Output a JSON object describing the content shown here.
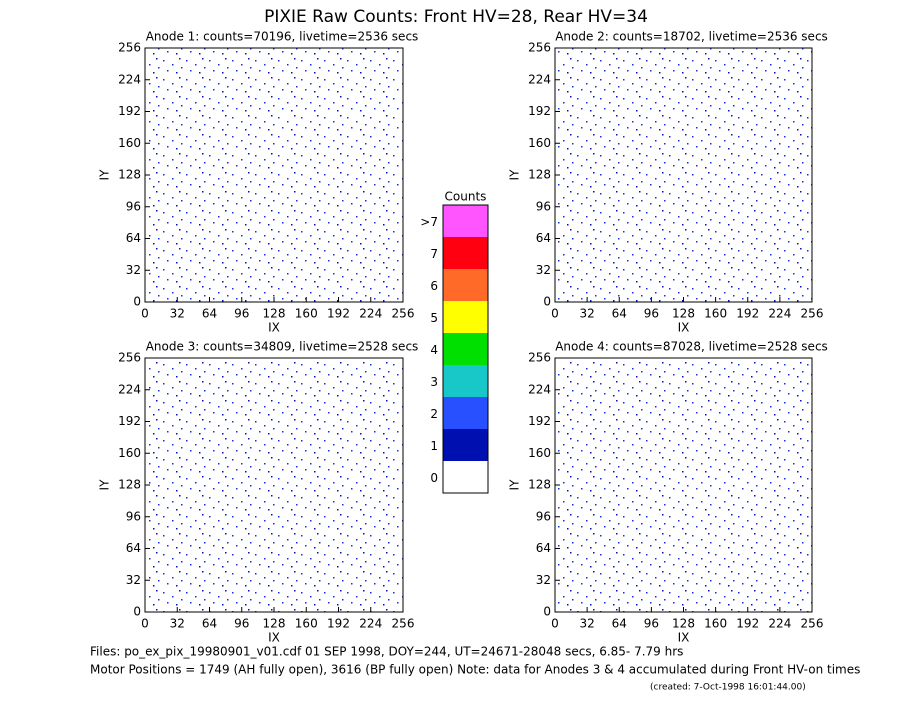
{
  "title": "PIXIE Raw Counts:  Front HV=28, Rear HV=34",
  "chart_data": [
    {
      "type": "heatmap",
      "title": "Anode 1: counts=70196, livetime=2536 secs",
      "xlabel": "IX",
      "ylabel": "IY",
      "xlim": [
        0,
        256
      ],
      "ylim": [
        0,
        256
      ],
      "xticks": [
        0,
        32,
        64,
        96,
        128,
        160,
        192,
        224,
        256
      ],
      "yticks": [
        0,
        32,
        64,
        96,
        128,
        160,
        192,
        224,
        256
      ]
    },
    {
      "type": "heatmap",
      "title": "Anode 2: counts=18702, livetime=2536 secs",
      "xlabel": "IX",
      "ylabel": "IY",
      "xlim": [
        0,
        256
      ],
      "ylim": [
        0,
        256
      ],
      "xticks": [
        0,
        32,
        64,
        96,
        128,
        160,
        192,
        224,
        256
      ],
      "yticks": [
        0,
        32,
        64,
        96,
        128,
        160,
        192,
        224,
        256
      ]
    },
    {
      "type": "heatmap",
      "title": "Anode 3: counts=34809, livetime=2528 secs",
      "xlabel": "IX",
      "ylabel": "IY",
      "xlim": [
        0,
        256
      ],
      "ylim": [
        0,
        256
      ],
      "xticks": [
        0,
        32,
        64,
        96,
        128,
        160,
        192,
        224,
        256
      ],
      "yticks": [
        0,
        32,
        64,
        96,
        128,
        160,
        192,
        224,
        256
      ]
    },
    {
      "type": "heatmap",
      "title": "Anode 4: counts=87028, livetime=2528 secs",
      "xlabel": "IX",
      "ylabel": "IY",
      "xlim": [
        0,
        256
      ],
      "ylim": [
        0,
        256
      ],
      "xticks": [
        0,
        32,
        64,
        96,
        128,
        160,
        192,
        224,
        256
      ],
      "yticks": [
        0,
        32,
        64,
        96,
        128,
        160,
        192,
        224,
        256
      ]
    }
  ],
  "colorbar": {
    "title": "Counts",
    "levels": [
      {
        "label": "0",
        "color": "#ffffff"
      },
      {
        "label": "1",
        "color": "#0010b0"
      },
      {
        "label": "2",
        "color": "#2850ff"
      },
      {
        "label": "3",
        "color": "#18c8c8"
      },
      {
        "label": "4",
        "color": "#00e000"
      },
      {
        "label": "5",
        "color": "#ffff00"
      },
      {
        "label": "6",
        "color": "#ff6a28"
      },
      {
        "label": "7",
        "color": "#ff0010"
      },
      {
        "label": ">7",
        "color": "#ff55ff"
      }
    ]
  },
  "footer": {
    "files": "Files: po_ex_pix_19980901_v01.cdf    01 SEP 1998, DOY=244, UT=24671-28048 secs,  6.85- 7.79 hrs",
    "motor": "Motor Positions = 1749 (AH fully open), 3616 (BP fully open)    Note: data for Anodes 3 & 4 accumulated during Front HV-on times",
    "created": "(created:  7-Oct-1998 16:01:44.00)"
  }
}
